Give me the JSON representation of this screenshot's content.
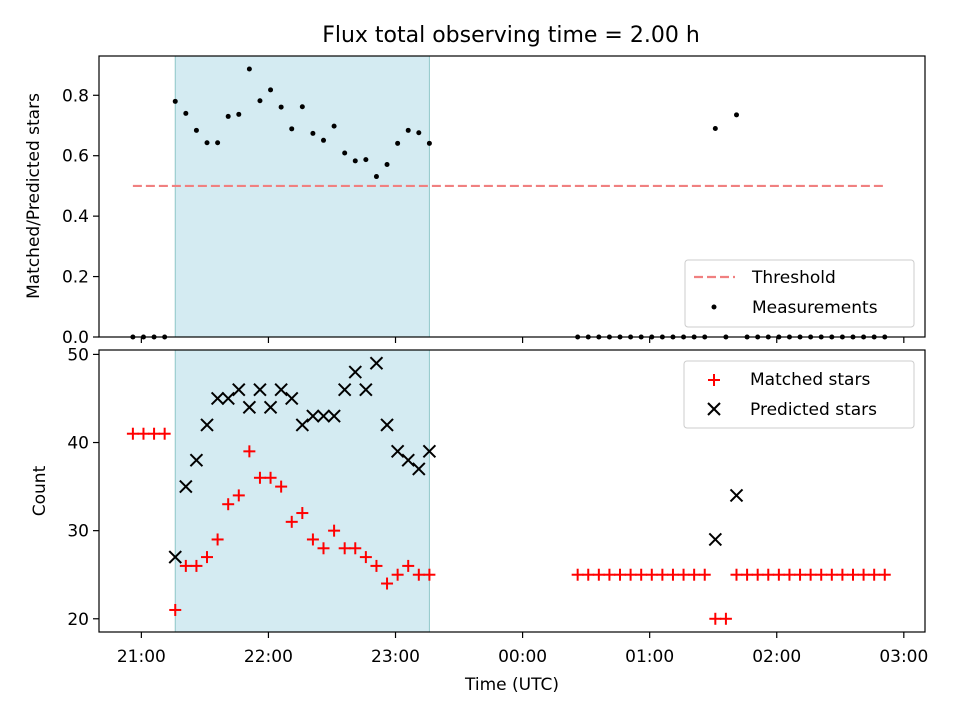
{
  "chart_data": {
    "title": "Flux total observing time = 2.00 h",
    "xlabel": "Time (UTC)",
    "x_ticks": [
      "21:00",
      "22:00",
      "23:00",
      "00:00",
      "01:00",
      "02:00",
      "03:00"
    ],
    "shaded_interval": {
      "start": "21:16",
      "end": "23:16",
      "color": "#add8e6"
    },
    "panels": [
      {
        "type": "scatter",
        "ylabel": "Matched/Predicted stars",
        "ylim": [
          0,
          0.93
        ],
        "y_ticks": [
          "0.0",
          "0.2",
          "0.4",
          "0.6",
          "0.8"
        ],
        "legend_position": "lower-right",
        "threshold": {
          "name": "Threshold",
          "value": 0.5,
          "x_start": "20:56",
          "x_end": "02:51",
          "color": "#f08080"
        },
        "series": [
          {
            "name": "Measurements",
            "color": "#000000",
            "marker": "dot",
            "points": [
              [
                "20:56",
                0
              ],
              [
                "21:01",
                0
              ],
              [
                "21:06",
                0
              ],
              [
                "21:11",
                0
              ],
              [
                "21:16",
                0.78
              ],
              [
                "21:21",
                0.74
              ],
              [
                "21:26",
                0.684
              ],
              [
                "21:31",
                0.643
              ],
              [
                "21:36",
                0.643
              ],
              [
                "21:41",
                0.73
              ],
              [
                "21:46",
                0.737
              ],
              [
                "21:51",
                0.887
              ],
              [
                "21:56",
                0.782
              ],
              [
                "22:01",
                0.818
              ],
              [
                "22:06",
                0.761
              ],
              [
                "22:11",
                0.689
              ],
              [
                "22:16",
                0.762
              ],
              [
                "22:21",
                0.674
              ],
              [
                "22:26",
                0.651
              ],
              [
                "22:31",
                0.698
              ],
              [
                "22:36",
                0.609
              ],
              [
                "22:41",
                0.583
              ],
              [
                "22:46",
                0.587
              ],
              [
                "22:51",
                0.531
              ],
              [
                "22:56",
                0.571
              ],
              [
                "23:01",
                0.641
              ],
              [
                "23:06",
                0.684
              ],
              [
                "23:11",
                0.676
              ],
              [
                "23:16",
                0.641
              ],
              [
                "00:26",
                0
              ],
              [
                "00:31",
                0
              ],
              [
                "00:36",
                0
              ],
              [
                "00:41",
                0
              ],
              [
                "00:46",
                0
              ],
              [
                "00:51",
                0
              ],
              [
                "00:56",
                0
              ],
              [
                "01:01",
                0
              ],
              [
                "01:06",
                0
              ],
              [
                "01:11",
                0
              ],
              [
                "01:16",
                0
              ],
              [
                "01:21",
                0
              ],
              [
                "01:26",
                0
              ],
              [
                "01:31",
                0.69
              ],
              [
                "01:36",
                0
              ],
              [
                "01:41",
                0.735
              ],
              [
                "01:46",
                0
              ],
              [
                "01:51",
                0
              ],
              [
                "01:56",
                0
              ],
              [
                "02:01",
                0
              ],
              [
                "02:06",
                0
              ],
              [
                "02:11",
                0
              ],
              [
                "02:16",
                0
              ],
              [
                "02:21",
                0
              ],
              [
                "02:26",
                0
              ],
              [
                "02:31",
                0
              ],
              [
                "02:36",
                0
              ],
              [
                "02:41",
                0
              ],
              [
                "02:46",
                0
              ],
              [
                "02:51",
                0
              ]
            ]
          }
        ]
      },
      {
        "type": "scatter",
        "ylabel": "Count",
        "ylim": [
          18.5,
          50.5
        ],
        "y_ticks": [
          "20",
          "30",
          "40",
          "50"
        ],
        "legend_position": "upper-right",
        "series": [
          {
            "name": "Matched stars",
            "color": "#ff0000",
            "marker": "plus",
            "points": [
              [
                "20:56",
                41
              ],
              [
                "21:01",
                41
              ],
              [
                "21:06",
                41
              ],
              [
                "21:11",
                41
              ],
              [
                "21:16",
                21
              ],
              [
                "21:21",
                26
              ],
              [
                "21:26",
                26
              ],
              [
                "21:31",
                27
              ],
              [
                "21:36",
                29
              ],
              [
                "21:41",
                33
              ],
              [
                "21:46",
                34
              ],
              [
                "21:51",
                39
              ],
              [
                "21:56",
                36
              ],
              [
                "22:01",
                36
              ],
              [
                "22:06",
                35
              ],
              [
                "22:11",
                31
              ],
              [
                "22:16",
                32
              ],
              [
                "22:21",
                29
              ],
              [
                "22:26",
                28
              ],
              [
                "22:31",
                30
              ],
              [
                "22:36",
                28
              ],
              [
                "22:41",
                28
              ],
              [
                "22:46",
                27
              ],
              [
                "22:51",
                26
              ],
              [
                "22:56",
                24
              ],
              [
                "23:01",
                25
              ],
              [
                "23:06",
                26
              ],
              [
                "23:11",
                25
              ],
              [
                "23:16",
                25
              ],
              [
                "00:26",
                25
              ],
              [
                "00:31",
                25
              ],
              [
                "00:36",
                25
              ],
              [
                "00:41",
                25
              ],
              [
                "00:46",
                25
              ],
              [
                "00:51",
                25
              ],
              [
                "00:56",
                25
              ],
              [
                "01:01",
                25
              ],
              [
                "01:06",
                25
              ],
              [
                "01:11",
                25
              ],
              [
                "01:16",
                25
              ],
              [
                "01:21",
                25
              ],
              [
                "01:26",
                25
              ],
              [
                "01:31",
                20
              ],
              [
                "01:36",
                20
              ],
              [
                "01:41",
                25
              ],
              [
                "01:46",
                25
              ],
              [
                "01:51",
                25
              ],
              [
                "01:56",
                25
              ],
              [
                "02:01",
                25
              ],
              [
                "02:06",
                25
              ],
              [
                "02:11",
                25
              ],
              [
                "02:16",
                25
              ],
              [
                "02:21",
                25
              ],
              [
                "02:26",
                25
              ],
              [
                "02:31",
                25
              ],
              [
                "02:36",
                25
              ],
              [
                "02:41",
                25
              ],
              [
                "02:46",
                25
              ],
              [
                "02:51",
                25
              ]
            ]
          },
          {
            "name": "Predicted stars",
            "color": "#000000",
            "marker": "cross",
            "points": [
              [
                "21:16",
                27
              ],
              [
                "21:21",
                35
              ],
              [
                "21:26",
                38
              ],
              [
                "21:31",
                42
              ],
              [
                "21:36",
                45
              ],
              [
                "21:41",
                45
              ],
              [
                "21:46",
                46
              ],
              [
                "21:51",
                44
              ],
              [
                "21:56",
                46
              ],
              [
                "22:01",
                44
              ],
              [
                "22:06",
                46
              ],
              [
                "22:11",
                45
              ],
              [
                "22:16",
                42
              ],
              [
                "22:21",
                43
              ],
              [
                "22:26",
                43
              ],
              [
                "22:31",
                43
              ],
              [
                "22:36",
                46
              ],
              [
                "22:41",
                48
              ],
              [
                "22:46",
                46
              ],
              [
                "22:51",
                49
              ],
              [
                "22:56",
                42
              ],
              [
                "23:01",
                39
              ],
              [
                "23:06",
                38
              ],
              [
                "23:11",
                37
              ],
              [
                "23:16",
                39
              ],
              [
                "01:31",
                29
              ],
              [
                "01:41",
                34
              ]
            ]
          }
        ]
      }
    ]
  }
}
